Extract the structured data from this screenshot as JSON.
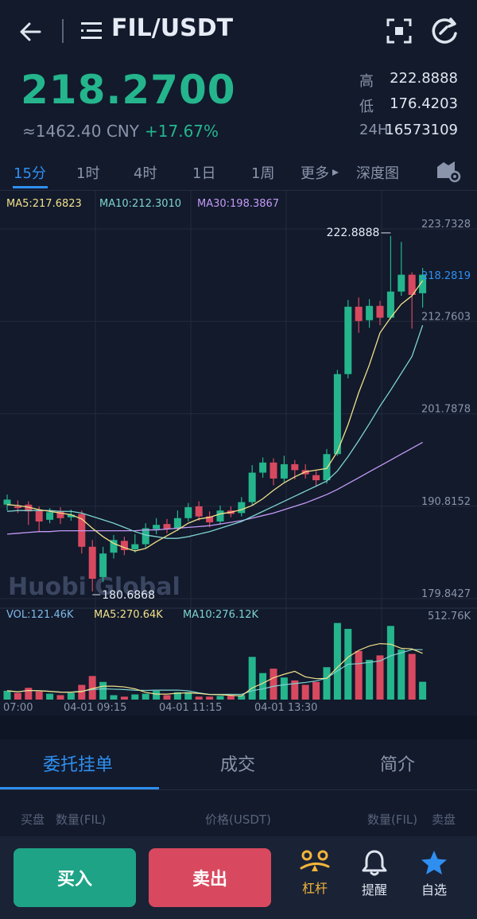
{
  "header": {
    "pair": "FIL/USDT",
    "back_icon": "back-arrow-icon",
    "menu_icon": "menu-list-icon",
    "fullscreen_icon": "fullscreen-icon",
    "refresh_icon": "refresh-icon"
  },
  "ticker": {
    "last_price": "218.2700",
    "cny": "≈1462.40 CNY",
    "change": "+17.67%",
    "high_label": "高",
    "high": "222.8888",
    "low_label": "低",
    "low": "176.4203",
    "vol24_label": "24H",
    "vol24": "16573109"
  },
  "tabs": [
    "15分",
    "1时",
    "4时",
    "1日",
    "1周",
    "更多",
    "深度图"
  ],
  "active_tab": "15分",
  "colors": {
    "up": "#25b58d",
    "down": "#d8495f",
    "accent": "#2f8ff0",
    "ma5": "#f2e08a",
    "ma10": "#7ed3d0",
    "ma30": "#c49af5",
    "background": "#121a2c"
  },
  "chart_data": {
    "type": "candlestick",
    "ma_labels": {
      "ma5": "MA5:217.6823",
      "ma10": "MA10:212.3010",
      "ma30": "MA30:198.3867"
    },
    "price_axis": [
      "223.7328",
      "212.7603",
      "201.7878",
      "190.8152",
      "179.8427"
    ],
    "ylim": [
      179.8427,
      223.7328
    ],
    "current_price_line": "218.2819",
    "high_marker": "222.8888",
    "low_marker": "180.6868",
    "time_labels": [
      "07:00",
      "04-01 09:15",
      "04-01 11:15",
      "04-01 13:30"
    ],
    "candles": [
      {
        "o": 191.0,
        "c": 191.6,
        "h": 192.2,
        "l": 190.3
      },
      {
        "o": 190.8,
        "c": 190.6,
        "h": 191.5,
        "l": 190.0
      },
      {
        "o": 191.0,
        "c": 190.2,
        "h": 191.4,
        "l": 188.6
      },
      {
        "o": 190.3,
        "c": 189.0,
        "h": 190.8,
        "l": 187.8
      },
      {
        "o": 189.2,
        "c": 190.1,
        "h": 190.6,
        "l": 188.8
      },
      {
        "o": 190.2,
        "c": 189.4,
        "h": 190.7,
        "l": 188.7
      },
      {
        "o": 189.5,
        "c": 189.8,
        "h": 190.4,
        "l": 189.1
      },
      {
        "o": 189.9,
        "c": 186.0,
        "h": 190.3,
        "l": 185.2
      },
      {
        "o": 186.0,
        "c": 182.2,
        "h": 186.8,
        "l": 180.7
      },
      {
        "o": 182.4,
        "c": 185.2,
        "h": 186.0,
        "l": 181.8
      },
      {
        "o": 185.3,
        "c": 186.8,
        "h": 187.4,
        "l": 184.6
      },
      {
        "o": 186.7,
        "c": 185.6,
        "h": 187.2,
        "l": 185.0
      },
      {
        "o": 185.7,
        "c": 186.3,
        "h": 187.5,
        "l": 185.3
      },
      {
        "o": 186.3,
        "c": 188.2,
        "h": 188.8,
        "l": 185.9
      },
      {
        "o": 188.1,
        "c": 188.6,
        "h": 189.4,
        "l": 187.5
      },
      {
        "o": 188.7,
        "c": 188.1,
        "h": 189.3,
        "l": 187.6
      },
      {
        "o": 188.2,
        "c": 189.4,
        "h": 190.3,
        "l": 187.9
      },
      {
        "o": 189.4,
        "c": 190.7,
        "h": 191.2,
        "l": 189.0
      },
      {
        "o": 190.8,
        "c": 189.6,
        "h": 191.4,
        "l": 189.1
      },
      {
        "o": 189.6,
        "c": 188.9,
        "h": 190.2,
        "l": 188.3
      },
      {
        "o": 189.0,
        "c": 190.3,
        "h": 190.9,
        "l": 188.6
      },
      {
        "o": 190.3,
        "c": 189.9,
        "h": 190.8,
        "l": 189.5
      },
      {
        "o": 190.0,
        "c": 191.3,
        "h": 191.9,
        "l": 189.6
      },
      {
        "o": 191.3,
        "c": 194.8,
        "h": 195.7,
        "l": 190.9
      },
      {
        "o": 194.8,
        "c": 196.0,
        "h": 196.6,
        "l": 194.2
      },
      {
        "o": 196.0,
        "c": 194.1,
        "h": 196.5,
        "l": 193.3
      },
      {
        "o": 194.1,
        "c": 195.8,
        "h": 196.8,
        "l": 193.7
      },
      {
        "o": 195.8,
        "c": 195.1,
        "h": 196.3,
        "l": 194.0
      },
      {
        "o": 195.1,
        "c": 194.6,
        "h": 195.8,
        "l": 194.1
      },
      {
        "o": 194.5,
        "c": 193.9,
        "h": 195.0,
        "l": 193.2
      },
      {
        "o": 193.9,
        "c": 197.0,
        "h": 197.6,
        "l": 193.5
      },
      {
        "o": 197.0,
        "c": 206.5,
        "h": 207.0,
        "l": 196.8
      },
      {
        "o": 206.5,
        "c": 214.5,
        "h": 215.3,
        "l": 206.0
      },
      {
        "o": 214.5,
        "c": 212.8,
        "h": 215.6,
        "l": 211.4
      },
      {
        "o": 212.9,
        "c": 214.6,
        "h": 215.4,
        "l": 212.0
      },
      {
        "o": 214.6,
        "c": 213.2,
        "h": 215.2,
        "l": 212.3
      },
      {
        "o": 213.2,
        "c": 216.3,
        "h": 222.9,
        "l": 213.0
      },
      {
        "o": 216.3,
        "c": 218.3,
        "h": 222.2,
        "l": 215.8
      },
      {
        "o": 218.3,
        "c": 215.9,
        "h": 218.6,
        "l": 211.9
      },
      {
        "o": 216.1,
        "c": 218.3,
        "h": 219.1,
        "l": 214.4
      }
    ],
    "ma5_series": [
      191.0,
      190.9,
      190.7,
      190.4,
      190.2,
      190.0,
      189.8,
      189.3,
      188.2,
      187.2,
      186.4,
      185.9,
      185.5,
      185.8,
      186.6,
      187.3,
      188.0,
      188.8,
      189.3,
      189.5,
      189.9,
      190.1,
      190.4,
      190.9,
      191.7,
      192.7,
      193.6,
      194.3,
      194.9,
      195.1,
      195.3,
      197.3,
      200.5,
      204.3,
      207.6,
      211.4,
      213.2,
      214.8,
      215.8,
      217.6
    ],
    "ma10_series": [
      190.2,
      190.3,
      190.3,
      190.3,
      190.3,
      190.2,
      190.2,
      190.0,
      189.6,
      189.2,
      188.8,
      188.3,
      187.8,
      187.4,
      187.2,
      187.0,
      187.0,
      187.2,
      187.5,
      187.8,
      188.2,
      188.6,
      189.0,
      189.6,
      190.2,
      190.8,
      191.4,
      192.0,
      192.6,
      193.2,
      193.8,
      195.0,
      196.7,
      198.6,
      200.6,
      202.7,
      204.6,
      206.6,
      208.6,
      212.3
    ],
    "ma30_series": [
      187.5,
      187.6,
      187.7,
      187.8,
      187.8,
      187.9,
      187.9,
      187.9,
      187.9,
      187.9,
      187.9,
      187.9,
      187.9,
      188.0,
      188.0,
      188.1,
      188.2,
      188.3,
      188.4,
      188.5,
      188.7,
      188.9,
      189.1,
      189.4,
      189.7,
      190.0,
      190.4,
      190.8,
      191.2,
      191.7,
      192.2,
      192.8,
      193.5,
      194.2,
      194.9,
      195.6,
      196.3,
      197.0,
      197.7,
      198.4
    ],
    "volume_labels": {
      "vol": "VOL:121.46K",
      "ma5": "MA5:270.64K",
      "ma10": "MA10:276.12K"
    },
    "volume_axis_max": "512.76K",
    "volume_max_k": 512.76,
    "volumes_k": [
      60,
      45,
      80,
      55,
      40,
      30,
      45,
      100,
      160,
      120,
      30,
      20,
      35,
      40,
      60,
      30,
      50,
      50,
      20,
      20,
      25,
      30,
      30,
      290,
      180,
      210,
      150,
      130,
      100,
      120,
      220,
      520,
      480,
      330,
      270,
      300,
      500,
      340,
      310,
      121
    ]
  },
  "bottom_tabs": [
    "委托挂单",
    "成交",
    "简介"
  ],
  "active_bottom_tab": "委托挂单",
  "orderbook_headers": {
    "bid": "买盘",
    "qty_left": "数量(FIL)",
    "price": "价格(USDT)",
    "qty_right": "数量(FIL)",
    "ask": "卖盘"
  },
  "actions": {
    "buy": "买入",
    "sell": "卖出",
    "leverage": "杠杆",
    "alert": "提醒",
    "favorite": "自选"
  },
  "watermark": "Huobi Global"
}
